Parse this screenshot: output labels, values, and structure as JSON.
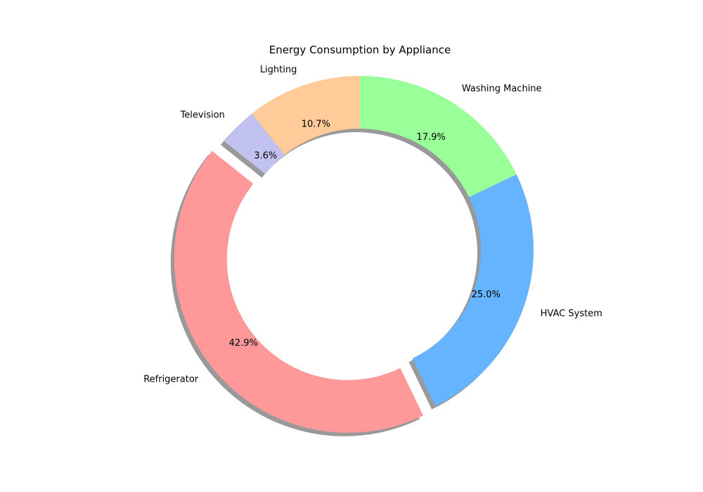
{
  "chart_data": {
    "type": "pie",
    "subtype": "donut",
    "title": "Energy Consumption by Appliance",
    "slices": [
      {
        "label": "Washing Machine",
        "value": 17.9,
        "pct_label": "17.9%",
        "color": "#99ff99",
        "explode": false
      },
      {
        "label": "HVAC System",
        "value": 25.0,
        "pct_label": "25.0%",
        "color": "#66b3ff",
        "explode": false
      },
      {
        "label": "Refrigerator",
        "value": 42.9,
        "pct_label": "42.9%",
        "color": "#ff9999",
        "explode": true
      },
      {
        "label": "Television",
        "value": 3.6,
        "pct_label": "3.6%",
        "color": "#c2c2f0",
        "explode": false
      },
      {
        "label": "Lighting",
        "value": 10.7,
        "pct_label": "10.7%",
        "color": "#ffcc99",
        "explode": false
      }
    ],
    "start_angle_deg": 90,
    "direction": "clockwise",
    "shadow": true,
    "legend": "none"
  }
}
